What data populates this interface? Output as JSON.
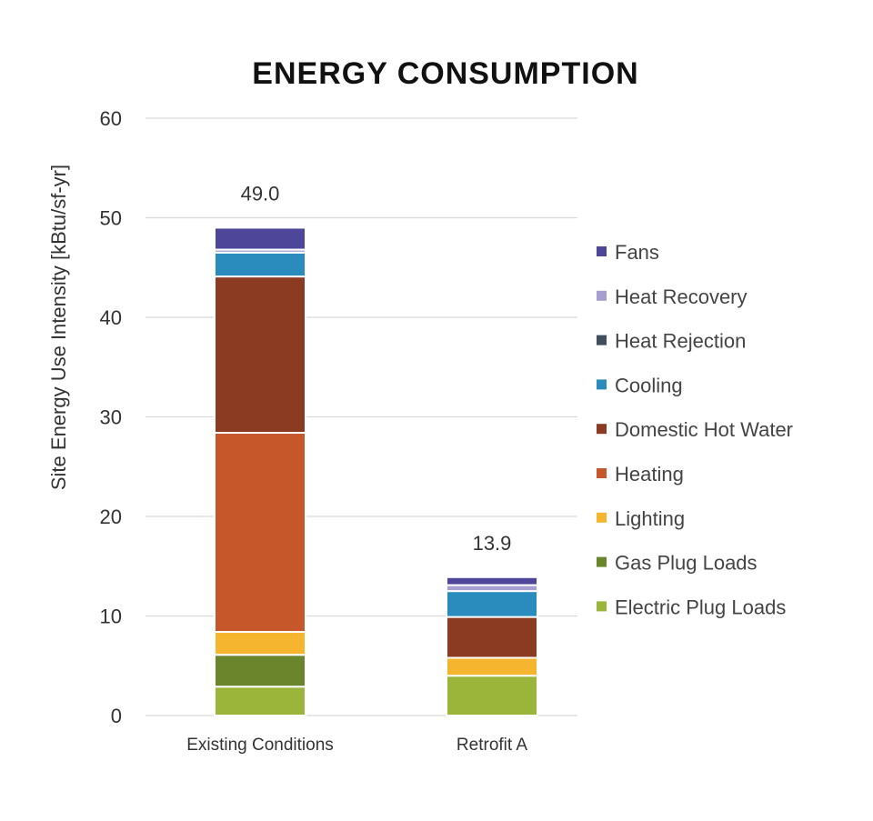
{
  "chart_data": {
    "type": "bar",
    "stacked": true,
    "title": "ENERGY CONSUMPTION",
    "xlabel": "",
    "ylabel": "Site Energy Use Intensity [kBtu/sf-yr]",
    "ylim": [
      0,
      60
    ],
    "yticks": [
      0,
      10,
      20,
      30,
      40,
      50,
      60
    ],
    "ytick_labels": [
      "0",
      "10",
      "20",
      "30",
      "40",
      "50",
      "60"
    ],
    "grid": true,
    "legend_position": "right",
    "categories": [
      "Existing Conditions",
      "Retrofit A"
    ],
    "totals": [
      49.0,
      13.9
    ],
    "total_labels": [
      "49.0",
      "13.9"
    ],
    "series": [
      {
        "name": "Electric Plug Loads",
        "color": "#9bb53a",
        "values": [
          2.9,
          4.0
        ]
      },
      {
        "name": "Gas Plug Loads",
        "color": "#6b852c",
        "values": [
          3.2,
          0.0
        ]
      },
      {
        "name": "Lighting",
        "color": "#f6b52e",
        "values": [
          2.3,
          1.8
        ]
      },
      {
        "name": "Heating",
        "color": "#c5572a",
        "values": [
          20.0,
          0.0
        ]
      },
      {
        "name": "Domestic Hot Water",
        "color": "#8b3b21",
        "values": [
          15.7,
          4.1
        ]
      },
      {
        "name": "Cooling",
        "color": "#2a8bbd",
        "values": [
          2.4,
          2.6
        ]
      },
      {
        "name": "Heat Rejection",
        "color": "#3f4f5e",
        "values": [
          0.0,
          0.0
        ]
      },
      {
        "name": "Heat Recovery",
        "color": "#a79fcf",
        "values": [
          0.3,
          0.6
        ]
      },
      {
        "name": "Fans",
        "color": "#4e4699",
        "values": [
          2.2,
          0.8
        ]
      }
    ],
    "legend_order": [
      "Fans",
      "Heat Recovery",
      "Heat Rejection",
      "Cooling",
      "Domestic Hot Water",
      "Heating",
      "Lighting",
      "Gas Plug Loads",
      "Electric Plug Loads"
    ]
  }
}
